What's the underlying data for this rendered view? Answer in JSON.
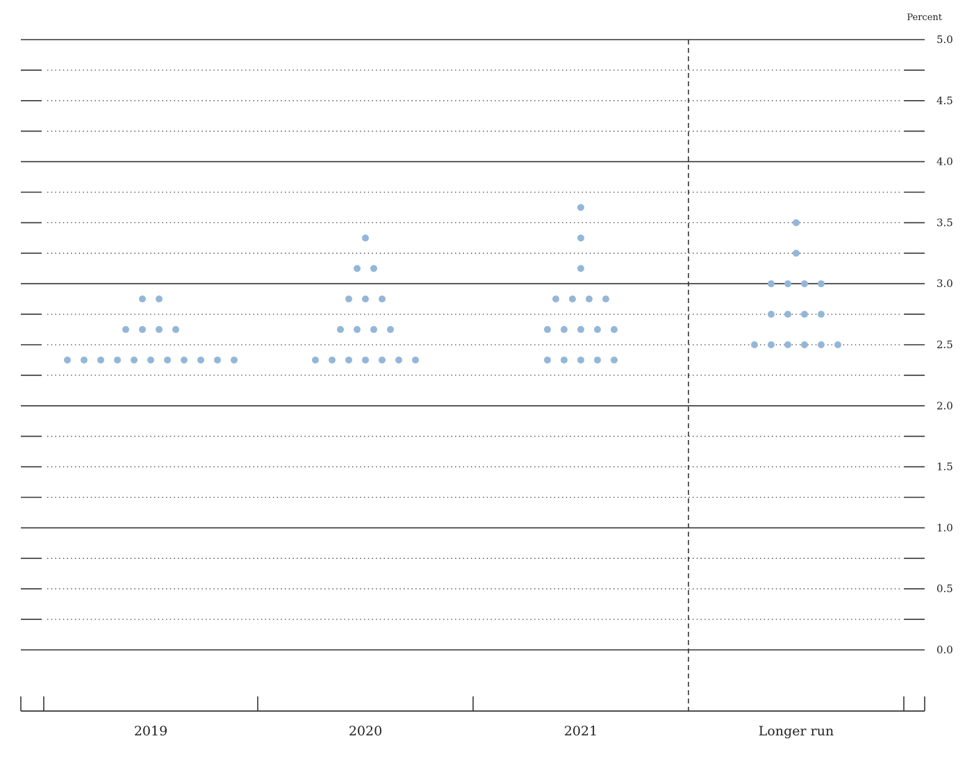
{
  "chart_data": {
    "type": "scatter",
    "title": "",
    "xlabel": "",
    "ylabel": "",
    "unit_label": "Percent",
    "ylim": [
      0,
      5
    ],
    "y_ticks": [
      "0.0",
      "0.5",
      "1.0",
      "1.5",
      "2.0",
      "2.5",
      "3.0",
      "3.5",
      "4.0",
      "4.5",
      "5.0"
    ],
    "categories": [
      "2019",
      "2020",
      "2021",
      "Longer run"
    ],
    "dot_color": "#94b6d8",
    "separator_before": "Longer run",
    "groups": [
      {
        "category": "2019",
        "rows": [
          {
            "y": 2.875,
            "count": 2
          },
          {
            "y": 2.625,
            "count": 4
          },
          {
            "y": 2.375,
            "count": 11
          }
        ]
      },
      {
        "category": "2020",
        "rows": [
          {
            "y": 3.375,
            "count": 1
          },
          {
            "y": 3.125,
            "count": 2
          },
          {
            "y": 2.875,
            "count": 3
          },
          {
            "y": 2.625,
            "count": 4
          },
          {
            "y": 2.375,
            "count": 7
          }
        ]
      },
      {
        "category": "2021",
        "rows": [
          {
            "y": 3.625,
            "count": 1
          },
          {
            "y": 3.375,
            "count": 1
          },
          {
            "y": 3.125,
            "count": 1
          },
          {
            "y": 2.875,
            "count": 4
          },
          {
            "y": 2.625,
            "count": 5
          },
          {
            "y": 2.375,
            "count": 5
          }
        ]
      },
      {
        "category": "Longer run",
        "rows": [
          {
            "y": 3.5,
            "count": 1
          },
          {
            "y": 3.25,
            "count": 1
          },
          {
            "y": 3.0,
            "count": 4
          },
          {
            "y": 2.75,
            "count": 4
          },
          {
            "y": 2.5,
            "count": 6
          }
        ]
      }
    ]
  }
}
